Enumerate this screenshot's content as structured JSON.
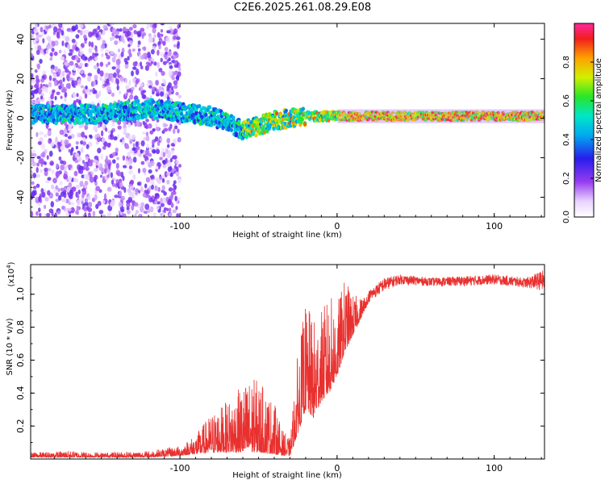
{
  "title": "C2E6.2025.261.08.29.E08",
  "chart_data": [
    {
      "type": "heatmap",
      "xlabel": "Height of straight line (km)",
      "ylabel": "Frequency (Hz)",
      "xlim": [
        -195,
        132
      ],
      "ylim": [
        -50,
        48
      ],
      "xticks": [
        -100,
        0,
        100
      ],
      "yticks": [
        40,
        20,
        0,
        -20,
        -40
      ],
      "colorbar": {
        "label": "Normalized spectral amplitude",
        "range": [
          0,
          1
        ],
        "ticks": [
          "0.0",
          "0.2",
          "0.4",
          "0.6",
          "0.8"
        ]
      },
      "dominant_frequency_trace": {
        "x": [
          -190,
          -150,
          -120,
          -100,
          -90,
          -80,
          -70,
          -60,
          -50,
          -40,
          -30,
          -20,
          -10,
          0,
          10,
          20,
          50,
          100,
          132
        ],
        "y": [
          2,
          2,
          5,
          3,
          2,
          1,
          -2,
          -6,
          -4,
          -1,
          0,
          1,
          1,
          1,
          1,
          1,
          1,
          1,
          1
        ]
      }
    },
    {
      "type": "line",
      "xlabel": "Height of straight line (km)",
      "ylabel": "SNR (10 * v/v)",
      "multiplier": "(x10",
      "multiplier_exp": "4",
      "multiplier_close": ")",
      "xlim": [
        -195,
        132
      ],
      "ylim": [
        0,
        1.18
      ],
      "xticks": [
        -100,
        0,
        100
      ],
      "yticks": [
        "0.2",
        "0.4",
        "0.6",
        "0.8",
        "1.0"
      ],
      "color": "#e8312f",
      "envelope": {
        "x": [
          -195,
          -170,
          -150,
          -120,
          -100,
          -90,
          -80,
          -70,
          -60,
          -55,
          -50,
          -40,
          -35,
          -30,
          -25,
          -20,
          -15,
          -10,
          -5,
          0,
          5,
          10,
          15,
          20,
          30,
          40,
          60,
          80,
          100,
          120,
          132
        ],
        "base": [
          0.01,
          0.01,
          0.01,
          0.01,
          0.02,
          0.03,
          0.04,
          0.04,
          0.04,
          0.04,
          0.04,
          0.03,
          0.02,
          0.02,
          0.15,
          0.3,
          0.25,
          0.35,
          0.4,
          0.5,
          0.65,
          0.75,
          0.85,
          0.95,
          1.02,
          1.06,
          1.05,
          1.05,
          1.06,
          1.04,
          1.02
        ],
        "peak": [
          0.04,
          0.05,
          0.04,
          0.05,
          0.08,
          0.15,
          0.28,
          0.35,
          0.45,
          0.5,
          0.48,
          0.35,
          0.18,
          0.12,
          0.65,
          0.95,
          0.85,
          0.9,
          1.0,
          0.95,
          1.1,
          1.0,
          0.98,
          1.02,
          1.1,
          1.12,
          1.1,
          1.11,
          1.12,
          1.1,
          1.15
        ]
      }
    }
  ]
}
